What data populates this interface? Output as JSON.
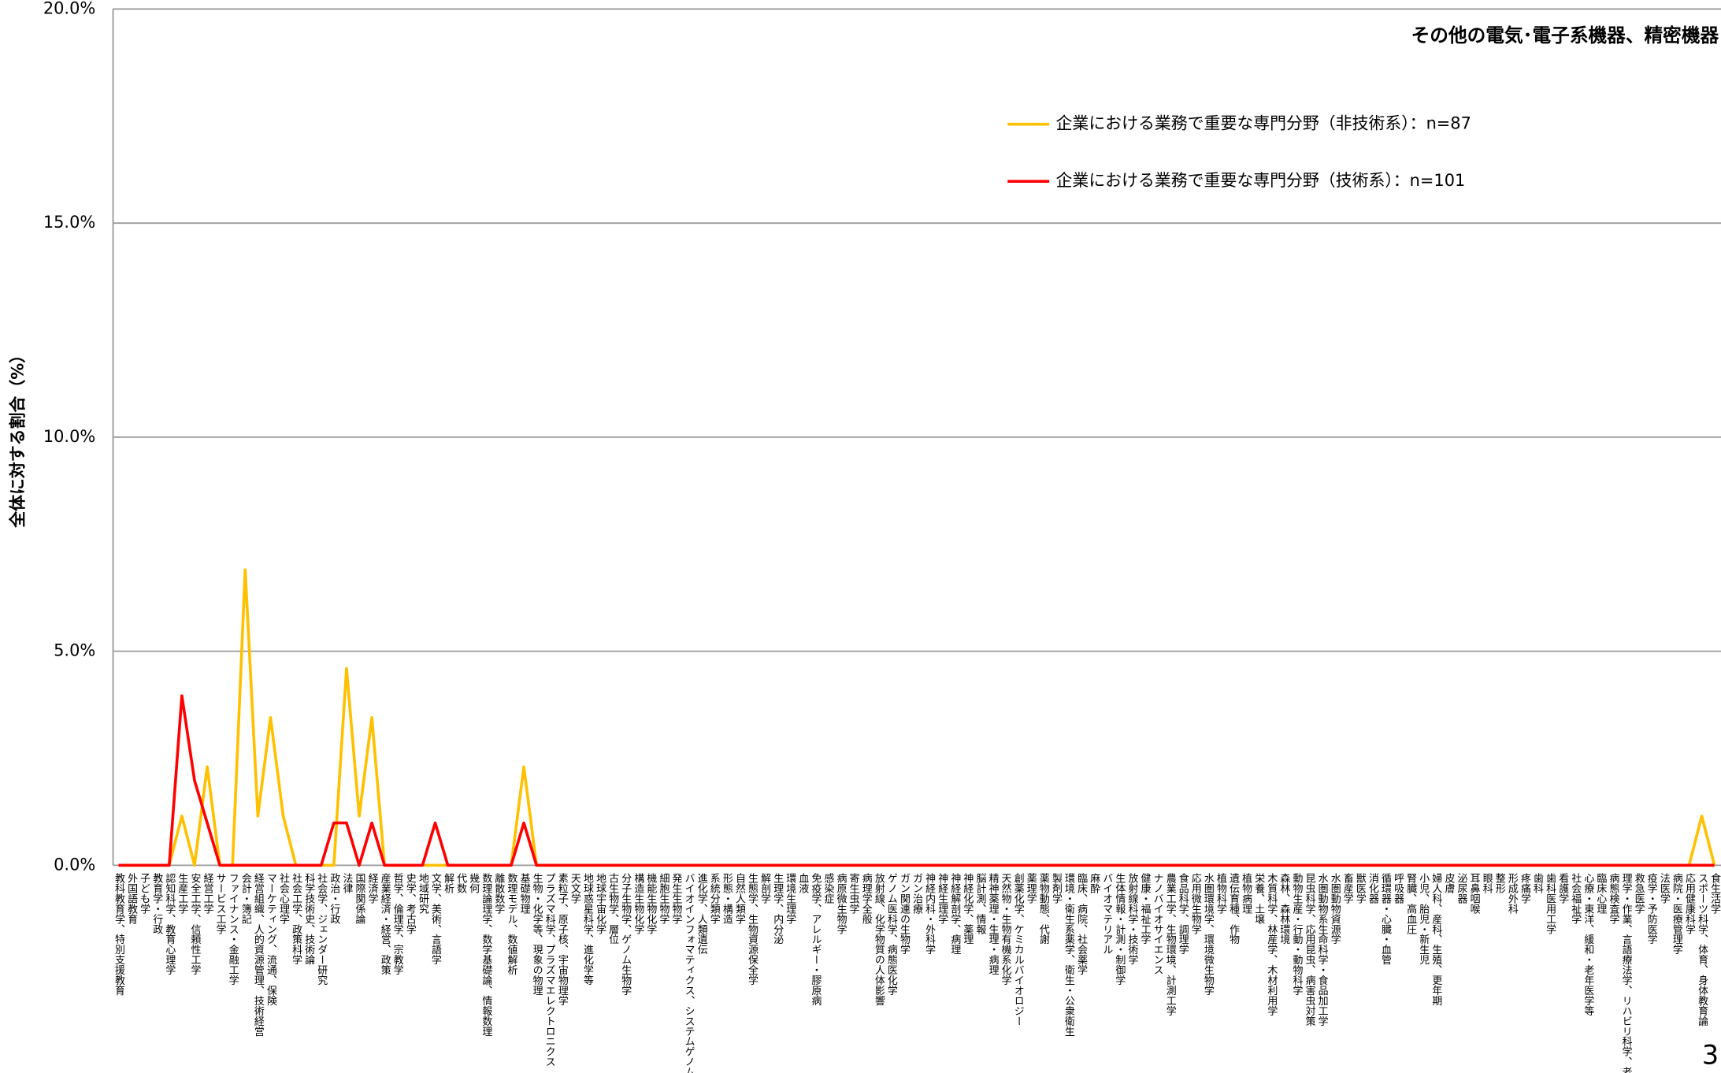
{
  "chart_data": {
    "type": "line",
    "title": "その他の電気･電子系機器、精密機器",
    "y_label": "全体に対する割合（%）",
    "page_number": "3",
    "categories": [
      "教科教育学、特別支援教育",
      "外国語教育",
      "子ども学",
      "教育学・行政",
      "認知科学、教育心理学",
      "生産工学",
      "安全工学、信頼性工学",
      "経営工学",
      "サービス工学",
      "ファイナンス・金融工学",
      "会計・簿記",
      "経営組織、人的資源管理、技術経営",
      "マーケティング、流通、保険",
      "社会心理学",
      "社会工学、政策科学",
      "科学技術史、技術論",
      "社会学、ジェンダー研究",
      "政治・行政",
      "法律",
      "国際関係論",
      "経済学",
      "産業経済・経営、政策",
      "哲学、倫理学、宗教学",
      "史学、考古学",
      "地域研究",
      "文学、美術、言語学",
      "解析",
      "代数",
      "幾何",
      "数理論理学、数学基礎論、情報数理",
      "離散数学",
      "数理モデル、数値解析",
      "基礎物理",
      "生物・化学等、現象の物理",
      "プラズマ科学、プラズマエレクトロニクス",
      "素粒子、原子核、宇宙物理学",
      "天文学",
      "地球惑星科学、進化学等",
      "地球宇宙化学",
      "古生物学、層位",
      "分子生物学、ゲノム生物学",
      "構造生物化学",
      "機能生物化学",
      "細胞生物学",
      "発生生物学",
      "バイオインフォマティクス、システムゲノム学",
      "進化学、人類遺伝",
      "系統分類学",
      "形態・構造",
      "自然人類学",
      "生態学、生物資源保全学",
      "解剖学",
      "生理学、内分泌",
      "環境生理学",
      "血液",
      "免疫学、アレルギー・膠原病",
      "感染症",
      "病原微生物学",
      "寄生虫学",
      "病理学全般",
      "放射線、化学物質の人体影響",
      "ゲノム医科学、病態医化学",
      "ガン関連の生物学",
      "ガン治療",
      "神経内科・外科学",
      "神経生理学",
      "神経解剖学、病理",
      "神経化学、薬理",
      "脳計測、情報",
      "精神薬理・生理・病理",
      "天然物・生物有機系化学",
      "創薬化学、ケミカルバイオロジー",
      "薬理学",
      "薬物動態、代謝",
      "製剤学",
      "環境・衛生系薬学、衛生・公衆衛生",
      "臨床、病院、社会薬学",
      "麻酔",
      "バイオマテリアル",
      "生体情報・計測・制御学",
      "放射線科学・技術学",
      "健康・福祉工学",
      "ナノバイオサイエンス",
      "農業工学、生物環境、計測工学",
      "食品科学、調理学",
      "応用微生物学",
      "水圏環境学、環境微生物学",
      "植物科学",
      "遺伝育種、作物",
      "植物病理",
      "栄養、土壌",
      "木質科学、林産学、木材利用学",
      "森林、森林環境",
      "動物生産・行動・動物科学",
      "昆虫科学、応用昆虫、病害虫対策",
      "水圏動物系生命科学・食品加工学",
      "水圏動物資源学",
      "畜産学",
      "獣医学",
      "消化器",
      "循環器・心臓・血管",
      "呼吸器",
      "腎臓、高血圧",
      "小児、胎児・新生児",
      "婦人科、産科、生殖、更年期",
      "皮膚",
      "泌尿器",
      "耳鼻咽喉",
      "眼科",
      "整形",
      "形成外科",
      "疼痛学",
      "歯科",
      "歯科医用工学",
      "看護学",
      "社会福祉学",
      "心療・東洋、緩和・老年医学等",
      "臨床心理",
      "病態検査学",
      "理学・作業、言語療法学、リハビリ科学、老年学",
      "救急医学",
      "疫学・予防医学",
      "法医学",
      "病院・医療管理学",
      "応用健康科学",
      "スポーツ科学、体育、身体教育論",
      "食生活学"
    ],
    "series": [
      {
        "name": "企業における業務で重要な専門分野（非技術系）：n=87",
        "color": "#ffc000",
        "values": [
          0,
          0,
          0,
          0,
          0,
          1.15,
          0,
          2.3,
          0,
          0,
          6.9,
          1.15,
          3.45,
          1.15,
          0,
          0,
          0,
          0,
          4.6,
          1.15,
          3.45,
          0,
          0,
          0,
          0,
          0,
          0,
          0,
          0,
          0,
          0,
          0,
          2.3,
          0,
          0,
          0,
          0,
          0,
          0,
          0,
          0,
          0,
          0,
          0,
          0,
          0,
          0,
          0,
          0,
          0,
          0,
          0,
          0,
          0,
          0,
          0,
          0,
          0,
          0,
          0,
          0,
          0,
          0,
          0,
          0,
          0,
          0,
          0,
          0,
          0,
          0,
          0,
          0,
          0,
          0,
          0,
          0,
          0,
          0,
          0,
          0,
          0,
          0,
          0,
          0,
          0,
          0,
          0,
          0,
          0,
          0,
          0,
          0,
          0,
          0,
          0,
          0,
          0,
          0,
          0,
          0,
          0,
          0,
          0,
          0,
          0,
          0,
          0,
          0,
          0,
          0,
          0,
          0,
          0,
          0,
          0,
          0,
          0,
          0,
          0,
          0,
          0,
          0,
          0,
          0,
          1.15,
          0
        ]
      },
      {
        "name": "企業における業務で重要な専門分野（技術系）：n=101",
        "color": "#ff0000",
        "values": [
          0,
          0,
          0,
          0,
          0,
          3.96,
          1.98,
          0.99,
          0,
          0,
          0,
          0,
          0,
          0,
          0,
          0,
          0,
          0.99,
          0.99,
          0,
          0.99,
          0,
          0,
          0,
          0,
          0.99,
          0,
          0,
          0,
          0,
          0,
          0,
          0.99,
          0,
          0,
          0,
          0,
          0,
          0,
          0,
          0,
          0,
          0,
          0,
          0,
          0,
          0,
          0,
          0,
          0,
          0,
          0,
          0,
          0,
          0,
          0,
          0,
          0,
          0,
          0,
          0,
          0,
          0,
          0,
          0,
          0,
          0,
          0,
          0,
          0,
          0,
          0,
          0,
          0,
          0,
          0,
          0,
          0,
          0,
          0,
          0,
          0,
          0,
          0,
          0,
          0,
          0,
          0,
          0,
          0,
          0,
          0,
          0,
          0,
          0,
          0,
          0,
          0,
          0,
          0,
          0,
          0,
          0,
          0,
          0,
          0,
          0,
          0,
          0,
          0,
          0,
          0,
          0,
          0,
          0,
          0,
          0,
          0,
          0,
          0,
          0,
          0,
          0,
          0,
          0,
          0,
          0
        ]
      }
    ],
    "ylim": [
      0,
      20
    ],
    "yticks": [
      {
        "value": 0,
        "label": "0.0%"
      },
      {
        "value": 5,
        "label": "5.0%"
      },
      {
        "value": 10,
        "label": "10.0%"
      },
      {
        "value": 15,
        "label": "15.0%"
      },
      {
        "value": 20,
        "label": "20.0%"
      }
    ],
    "grid": true
  }
}
